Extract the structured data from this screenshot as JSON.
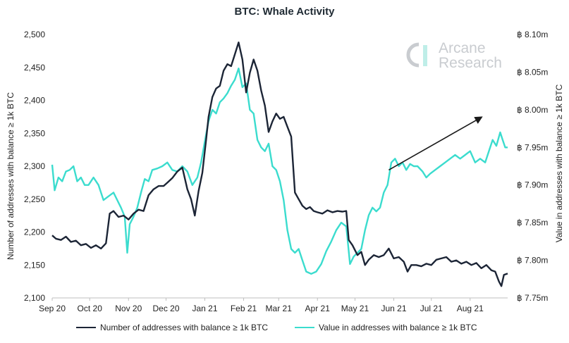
{
  "chart_data": {
    "type": "line",
    "title": "BTC: Whale Activity",
    "xlabel": "",
    "x_ticks": [
      "Sep 20",
      "Oct 20",
      "Nov 20",
      "Dec 20",
      "Jan 21",
      "Feb 21",
      "Mar 21",
      "Apr 21",
      "May 21",
      "Jun 21",
      "Jul 21",
      "Aug 21"
    ],
    "x_range": [
      "2020-09-01",
      "2021-08-31"
    ],
    "y_left": {
      "label": "Number of addresses with balance ≥ 1k BTC",
      "range": [
        2100,
        2500
      ],
      "ticks": [
        "2,100",
        "2,150",
        "2,200",
        "2,250",
        "2,300",
        "2,350",
        "2,400",
        "2,450",
        "2,500"
      ]
    },
    "y_right": {
      "label": "Value in addresses with balance ≥ 1k BTC",
      "range": [
        7.75,
        8.1
      ],
      "unit": "million BTC",
      "ticks": [
        "฿ 7.75m",
        "฿ 7.80m",
        "฿ 7.85m",
        "฿ 7.90m",
        "฿ 7.95m",
        "฿ 8.00m",
        "฿ 8.05m",
        "฿ 8.10m"
      ]
    },
    "series": [
      {
        "name": "Number of addresses with balance ≥ 1k BTC",
        "axis": "left",
        "color": "#1c2536",
        "points": [
          [
            "2020-09-01",
            2195
          ],
          [
            "2020-09-04",
            2190
          ],
          [
            "2020-09-08",
            2188
          ],
          [
            "2020-09-12",
            2193
          ],
          [
            "2020-09-16",
            2185
          ],
          [
            "2020-09-20",
            2187
          ],
          [
            "2020-09-24",
            2180
          ],
          [
            "2020-09-28",
            2182
          ],
          [
            "2020-10-02",
            2176
          ],
          [
            "2020-10-06",
            2180
          ],
          [
            "2020-10-10",
            2175
          ],
          [
            "2020-10-14",
            2183
          ],
          [
            "2020-10-17",
            2228
          ],
          [
            "2020-10-20",
            2232
          ],
          [
            "2020-10-24",
            2223
          ],
          [
            "2020-10-28",
            2225
          ],
          [
            "2020-11-01",
            2219
          ],
          [
            "2020-11-05",
            2228
          ],
          [
            "2020-11-09",
            2234
          ],
          [
            "2020-11-13",
            2232
          ],
          [
            "2020-11-17",
            2256
          ],
          [
            "2020-11-21",
            2265
          ],
          [
            "2020-11-25",
            2270
          ],
          [
            "2020-11-29",
            2270
          ],
          [
            "2020-12-02",
            2275
          ],
          [
            "2020-12-06",
            2282
          ],
          [
            "2020-12-10",
            2292
          ],
          [
            "2020-12-14",
            2298
          ],
          [
            "2020-12-18",
            2265
          ],
          [
            "2020-12-21",
            2250
          ],
          [
            "2020-12-24",
            2225
          ],
          [
            "2020-12-27",
            2262
          ],
          [
            "2020-12-30",
            2290
          ],
          [
            "2021-01-02",
            2340
          ],
          [
            "2021-01-04",
            2375
          ],
          [
            "2021-01-07",
            2405
          ],
          [
            "2021-01-10",
            2418
          ],
          [
            "2021-01-13",
            2422
          ],
          [
            "2021-01-16",
            2445
          ],
          [
            "2021-01-19",
            2455
          ],
          [
            "2021-01-22",
            2452
          ],
          [
            "2021-01-25",
            2470
          ],
          [
            "2021-01-28",
            2488
          ],
          [
            "2021-01-31",
            2462
          ],
          [
            "2021-02-03",
            2412
          ],
          [
            "2021-02-06",
            2442
          ],
          [
            "2021-02-09",
            2462
          ],
          [
            "2021-02-12",
            2445
          ],
          [
            "2021-02-15",
            2415
          ],
          [
            "2021-02-18",
            2392
          ],
          [
            "2021-02-21",
            2352
          ],
          [
            "2021-02-24",
            2368
          ],
          [
            "2021-02-27",
            2380
          ],
          [
            "2021-03-02",
            2372
          ],
          [
            "2021-03-05",
            2375
          ],
          [
            "2021-03-08",
            2360
          ],
          [
            "2021-03-11",
            2345
          ],
          [
            "2021-03-14",
            2260
          ],
          [
            "2021-03-17",
            2250
          ],
          [
            "2021-03-20",
            2240
          ],
          [
            "2021-03-23",
            2235
          ],
          [
            "2021-03-26",
            2238
          ],
          [
            "2021-03-29",
            2232
          ],
          [
            "2021-04-01",
            2230
          ],
          [
            "2021-04-05",
            2228
          ],
          [
            "2021-04-09",
            2233
          ],
          [
            "2021-04-13",
            2230
          ],
          [
            "2021-04-17",
            2232
          ],
          [
            "2021-04-21",
            2231
          ],
          [
            "2021-04-24",
            2232
          ],
          [
            "2021-04-26",
            2188
          ],
          [
            "2021-04-29",
            2180
          ],
          [
            "2021-05-03",
            2165
          ],
          [
            "2021-05-06",
            2170
          ],
          [
            "2021-05-09",
            2150
          ],
          [
            "2021-05-12",
            2158
          ],
          [
            "2021-05-16",
            2165
          ],
          [
            "2021-05-20",
            2162
          ],
          [
            "2021-05-24",
            2165
          ],
          [
            "2021-05-28",
            2175
          ],
          [
            "2021-06-01",
            2160
          ],
          [
            "2021-06-05",
            2162
          ],
          [
            "2021-06-09",
            2155
          ],
          [
            "2021-06-12",
            2140
          ],
          [
            "2021-06-15",
            2150
          ],
          [
            "2021-06-19",
            2150
          ],
          [
            "2021-06-23",
            2148
          ],
          [
            "2021-06-27",
            2152
          ],
          [
            "2021-07-01",
            2150
          ],
          [
            "2021-07-05",
            2158
          ],
          [
            "2021-07-09",
            2160
          ],
          [
            "2021-07-13",
            2162
          ],
          [
            "2021-07-17",
            2155
          ],
          [
            "2021-07-21",
            2157
          ],
          [
            "2021-07-25",
            2152
          ],
          [
            "2021-07-29",
            2155
          ],
          [
            "2021-08-02",
            2150
          ],
          [
            "2021-08-06",
            2153
          ],
          [
            "2021-08-10",
            2145
          ],
          [
            "2021-08-14",
            2150
          ],
          [
            "2021-08-18",
            2142
          ],
          [
            "2021-08-21",
            2140
          ],
          [
            "2021-08-24",
            2125
          ],
          [
            "2021-08-26",
            2118
          ],
          [
            "2021-08-28",
            2135
          ],
          [
            "2021-08-31",
            2137
          ]
        ]
      },
      {
        "name": "Value in addresses with balance ≥ 1k BTC",
        "axis": "right",
        "color": "#3bdcce",
        "points": [
          [
            "2020-09-01",
            7.927
          ],
          [
            "2020-09-03",
            7.893
          ],
          [
            "2020-09-06",
            7.91
          ],
          [
            "2020-09-09",
            7.905
          ],
          [
            "2020-09-12",
            7.918
          ],
          [
            "2020-09-15",
            7.92
          ],
          [
            "2020-09-18",
            7.925
          ],
          [
            "2020-09-21",
            7.905
          ],
          [
            "2020-09-24",
            7.91
          ],
          [
            "2020-09-27",
            7.9
          ],
          [
            "2020-09-30",
            7.9
          ],
          [
            "2020-10-04",
            7.91
          ],
          [
            "2020-10-08",
            7.9
          ],
          [
            "2020-10-12",
            7.88
          ],
          [
            "2020-10-16",
            7.885
          ],
          [
            "2020-10-20",
            7.89
          ],
          [
            "2020-10-23",
            7.88
          ],
          [
            "2020-10-26",
            7.87
          ],
          [
            "2020-10-29",
            7.858
          ],
          [
            "2020-10-31",
            7.81
          ],
          [
            "2020-11-02",
            7.848
          ],
          [
            "2020-11-05",
            7.858
          ],
          [
            "2020-11-08",
            7.87
          ],
          [
            "2020-11-11",
            7.89
          ],
          [
            "2020-11-14",
            7.908
          ],
          [
            "2020-11-17",
            7.905
          ],
          [
            "2020-11-20",
            7.92
          ],
          [
            "2020-11-24",
            7.922
          ],
          [
            "2020-11-28",
            7.925
          ],
          [
            "2020-12-02",
            7.93
          ],
          [
            "2020-12-06",
            7.92
          ],
          [
            "2020-12-10",
            7.918
          ],
          [
            "2020-12-14",
            7.925
          ],
          [
            "2020-12-18",
            7.918
          ],
          [
            "2020-12-22",
            7.9
          ],
          [
            "2020-12-26",
            7.91
          ],
          [
            "2020-12-29",
            7.93
          ],
          [
            "2021-01-01",
            7.958
          ],
          [
            "2021-01-04",
            7.985
          ],
          [
            "2021-01-07",
            8.0
          ],
          [
            "2021-01-10",
            7.995
          ],
          [
            "2021-01-13",
            8.01
          ],
          [
            "2021-01-16",
            8.015
          ],
          [
            "2021-01-19",
            8.022
          ],
          [
            "2021-01-22",
            8.032
          ],
          [
            "2021-01-25",
            8.04
          ],
          [
            "2021-01-28",
            8.055
          ],
          [
            "2021-01-31",
            8.03
          ],
          [
            "2021-02-03",
            8.035
          ],
          [
            "2021-02-06",
            8.0
          ],
          [
            "2021-02-09",
            7.995
          ],
          [
            "2021-02-12",
            7.96
          ],
          [
            "2021-02-15",
            7.95
          ],
          [
            "2021-02-18",
            7.945
          ],
          [
            "2021-02-21",
            7.955
          ],
          [
            "2021-02-24",
            7.925
          ],
          [
            "2021-02-27",
            7.92
          ],
          [
            "2021-03-02",
            7.905
          ],
          [
            "2021-03-05",
            7.88
          ],
          [
            "2021-03-08",
            7.84
          ],
          [
            "2021-03-11",
            7.815
          ],
          [
            "2021-03-14",
            7.81
          ],
          [
            "2021-03-17",
            7.815
          ],
          [
            "2021-03-20",
            7.8
          ],
          [
            "2021-03-23",
            7.785
          ],
          [
            "2021-03-27",
            7.782
          ],
          [
            "2021-03-31",
            7.785
          ],
          [
            "2021-04-04",
            7.795
          ],
          [
            "2021-04-08",
            7.812
          ],
          [
            "2021-04-12",
            7.825
          ],
          [
            "2021-04-16",
            7.84
          ],
          [
            "2021-04-20",
            7.85
          ],
          [
            "2021-04-24",
            7.845
          ],
          [
            "2021-04-27",
            7.795
          ],
          [
            "2021-04-30",
            7.805
          ],
          [
            "2021-05-03",
            7.81
          ],
          [
            "2021-05-06",
            7.815
          ],
          [
            "2021-05-09",
            7.84
          ],
          [
            "2021-05-12",
            7.86
          ],
          [
            "2021-05-15",
            7.87
          ],
          [
            "2021-05-18",
            7.865
          ],
          [
            "2021-05-21",
            7.87
          ],
          [
            "2021-05-24",
            7.89
          ],
          [
            "2021-05-27",
            7.9
          ],
          [
            "2021-05-30",
            7.93
          ],
          [
            "2021-06-02",
            7.935
          ],
          [
            "2021-06-05",
            7.925
          ],
          [
            "2021-06-08",
            7.93
          ],
          [
            "2021-06-11",
            7.92
          ],
          [
            "2021-06-14",
            7.928
          ],
          [
            "2021-06-17",
            7.925
          ],
          [
            "2021-06-20",
            7.925
          ],
          [
            "2021-06-24",
            7.918
          ],
          [
            "2021-06-27",
            7.91
          ],
          [
            "2021-06-30",
            7.915
          ],
          [
            "2021-07-04",
            7.92
          ],
          [
            "2021-07-08",
            7.925
          ],
          [
            "2021-07-12",
            7.93
          ],
          [
            "2021-07-16",
            7.935
          ],
          [
            "2021-07-20",
            7.94
          ],
          [
            "2021-07-24",
            7.935
          ],
          [
            "2021-07-28",
            7.94
          ],
          [
            "2021-08-01",
            7.945
          ],
          [
            "2021-08-05",
            7.93
          ],
          [
            "2021-08-09",
            7.935
          ],
          [
            "2021-08-13",
            7.93
          ],
          [
            "2021-08-16",
            7.945
          ],
          [
            "2021-08-19",
            7.96
          ],
          [
            "2021-08-22",
            7.952
          ],
          [
            "2021-08-25",
            7.97
          ],
          [
            "2021-08-27",
            7.96
          ],
          [
            "2021-08-29",
            7.95
          ],
          [
            "2021-08-31",
            7.95
          ]
        ]
      }
    ],
    "annotations": [
      {
        "type": "arrow",
        "from": [
          "2021-05-28",
          7.92
        ],
        "to": [
          "2021-08-10",
          7.99
        ],
        "color": "#1a1a1a"
      }
    ],
    "legend_position": "bottom",
    "grid": false
  },
  "watermark": {
    "line1": "Arcane",
    "line2": "Research",
    "color": "#c9ccd0"
  }
}
